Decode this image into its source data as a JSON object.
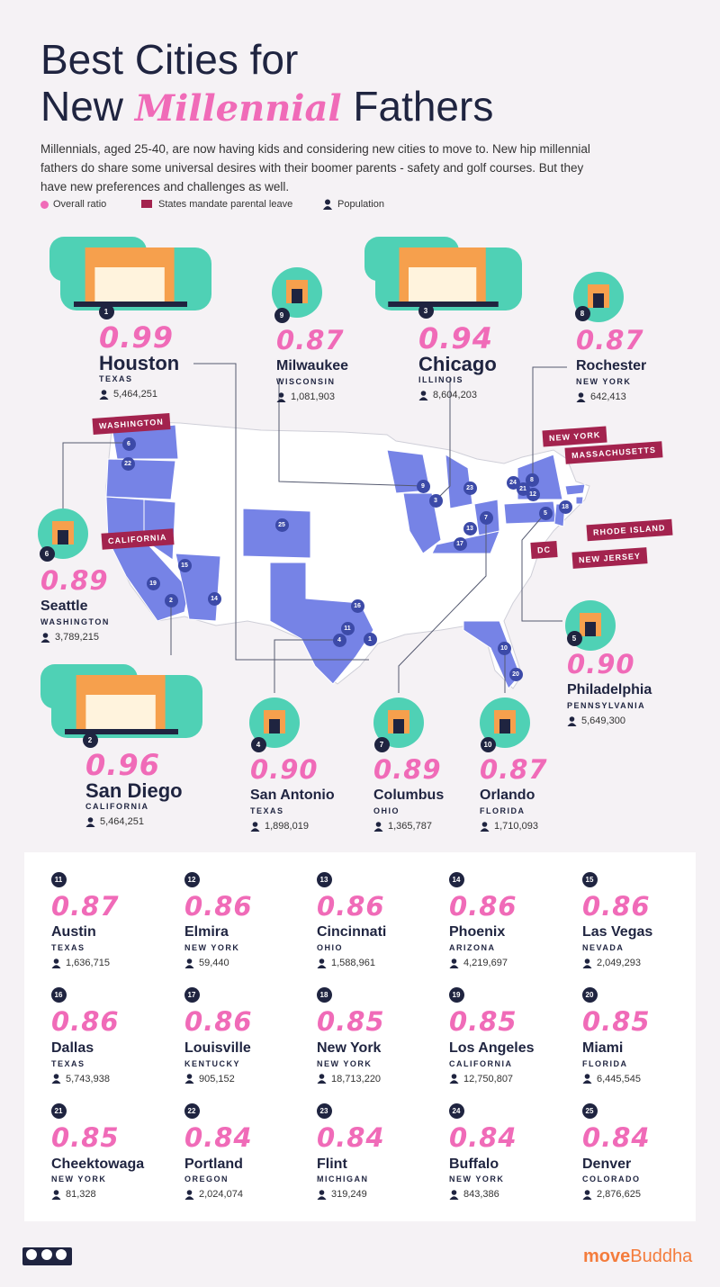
{
  "header": {
    "title_line1": "Best Cities for",
    "title_before": "New",
    "title_highlight": "Millennial",
    "title_after": "Fathers",
    "description": "Millennials, aged 25-40, are now having kids and considering new cities to move to. New hip millennial fathers do share some universal desires with their boomer parents - safety and golf courses. But they have new preferences and challenges as well."
  },
  "legend": {
    "overall_ratio": "Overall ratio",
    "parental_leave": "States mandate parental leave",
    "population": "Population"
  },
  "map": {
    "state_labels": [
      "WASHINGTON",
      "CALIFORNIA",
      "NEW YORK",
      "MASSACHUSETTS",
      "RHODE ISLAND",
      "NEW JERSEY",
      "DC"
    ]
  },
  "cities": [
    {
      "rank": 1,
      "score": "0.99",
      "city": "Houston",
      "state": "TEXAS",
      "population": "5,464,251"
    },
    {
      "rank": 2,
      "score": "0.96",
      "city": "San Diego",
      "state": "CALIFORNIA",
      "population": "5,464,251"
    },
    {
      "rank": 3,
      "score": "0.94",
      "city": "Chicago",
      "state": "ILLINOIS",
      "population": "8,604,203"
    },
    {
      "rank": 4,
      "score": "0.90",
      "city": "San Antonio",
      "state": "TEXAS",
      "population": "1,898,019"
    },
    {
      "rank": 5,
      "score": "0.90",
      "city": "Philadelphia",
      "state": "PENNSYLVANIA",
      "population": "5,649,300"
    },
    {
      "rank": 6,
      "score": "0.89",
      "city": "Seattle",
      "state": "WASHINGTON",
      "population": "3,789,215"
    },
    {
      "rank": 7,
      "score": "0.89",
      "city": "Columbus",
      "state": "OHIO",
      "population": "1,365,787"
    },
    {
      "rank": 8,
      "score": "0.87",
      "city": "Rochester",
      "state": "NEW YORK",
      "population": "642,413"
    },
    {
      "rank": 9,
      "score": "0.87",
      "city": "Milwaukee",
      "state": "WISCONSIN",
      "population": "1,081,903"
    },
    {
      "rank": 10,
      "score": "0.87",
      "city": "Orlando",
      "state": "FLORIDA",
      "population": "1,710,093"
    },
    {
      "rank": 11,
      "score": "0.87",
      "city": "Austin",
      "state": "TEXAS",
      "population": "1,636,715"
    },
    {
      "rank": 12,
      "score": "0.86",
      "city": "Elmira",
      "state": "NEW YORK",
      "population": "59,440"
    },
    {
      "rank": 13,
      "score": "0.86",
      "city": "Cincinnati",
      "state": "OHIO",
      "population": "1,588,961"
    },
    {
      "rank": 14,
      "score": "0.86",
      "city": "Phoenix",
      "state": "ARIZONA",
      "population": "4,219,697"
    },
    {
      "rank": 15,
      "score": "0.86",
      "city": "Las Vegas",
      "state": "NEVADA",
      "population": "2,049,293"
    },
    {
      "rank": 16,
      "score": "0.86",
      "city": "Dallas",
      "state": "TEXAS",
      "population": "5,743,938"
    },
    {
      "rank": 17,
      "score": "0.86",
      "city": "Louisville",
      "state": "KENTUCKY",
      "population": "905,152"
    },
    {
      "rank": 18,
      "score": "0.85",
      "city": "New York",
      "state": "NEW YORK",
      "population": "18,713,220"
    },
    {
      "rank": 19,
      "score": "0.85",
      "city": "Los Angeles",
      "state": "CALIFORNIA",
      "population": "12,750,807"
    },
    {
      "rank": 20,
      "score": "0.85",
      "city": "Miami",
      "state": "FLORIDA",
      "population": "6,445,545"
    },
    {
      "rank": 21,
      "score": "0.85",
      "city": "Cheektowaga",
      "state": "NEW YORK",
      "population": "81,328"
    },
    {
      "rank": 22,
      "score": "0.84",
      "city": "Portland",
      "state": "OREGON",
      "population": "2,024,074"
    },
    {
      "rank": 23,
      "score": "0.84",
      "city": "Flint",
      "state": "MICHIGAN",
      "population": "319,249"
    },
    {
      "rank": 24,
      "score": "0.84",
      "city": "Buffalo",
      "state": "NEW YORK",
      "population": "843,386"
    },
    {
      "rank": 25,
      "score": "0.84",
      "city": "Denver",
      "state": "COLORADO",
      "population": "2,876,625"
    }
  ],
  "footer": {
    "brand_bold": "move",
    "brand_rest": "Buddha"
  }
}
